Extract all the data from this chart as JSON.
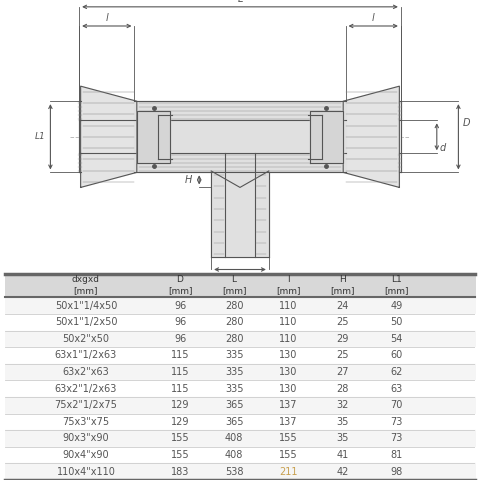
{
  "bg_color": "#ffffff",
  "text_color_normal": "#555555",
  "text_color_highlight": "#c8a050",
  "headers": [
    "dxgxd\n[mm]",
    "D\n[mm]",
    "L\n[mm]",
    "l\n[mm]",
    "H\n[mm]",
    "L1\n[mm]"
  ],
  "rows": [
    [
      "50x1\"1/4x50",
      "96",
      "280",
      "110",
      "24",
      "49"
    ],
    [
      "50x1\"1/2x50",
      "96",
      "280",
      "110",
      "25",
      "50"
    ],
    [
      "50x2\"x50",
      "96",
      "280",
      "110",
      "29",
      "54"
    ],
    [
      "63x1\"1/2x63",
      "115",
      "335",
      "130",
      "25",
      "60"
    ],
    [
      "63x2\"x63",
      "115",
      "335",
      "130",
      "27",
      "62"
    ],
    [
      "63x2\"1/2x63",
      "115",
      "335",
      "130",
      "28",
      "63"
    ],
    [
      "75x2\"1/2x75",
      "129",
      "365",
      "137",
      "32",
      "70"
    ],
    [
      "75x3\"x75",
      "129",
      "365",
      "137",
      "35",
      "73"
    ],
    [
      "90x3\"x90",
      "155",
      "408",
      "155",
      "35",
      "73"
    ],
    [
      "90x4\"x90",
      "155",
      "408",
      "155",
      "41",
      "81"
    ],
    [
      "110x4\"x110",
      "183",
      "538",
      "211",
      "42",
      "98"
    ]
  ]
}
